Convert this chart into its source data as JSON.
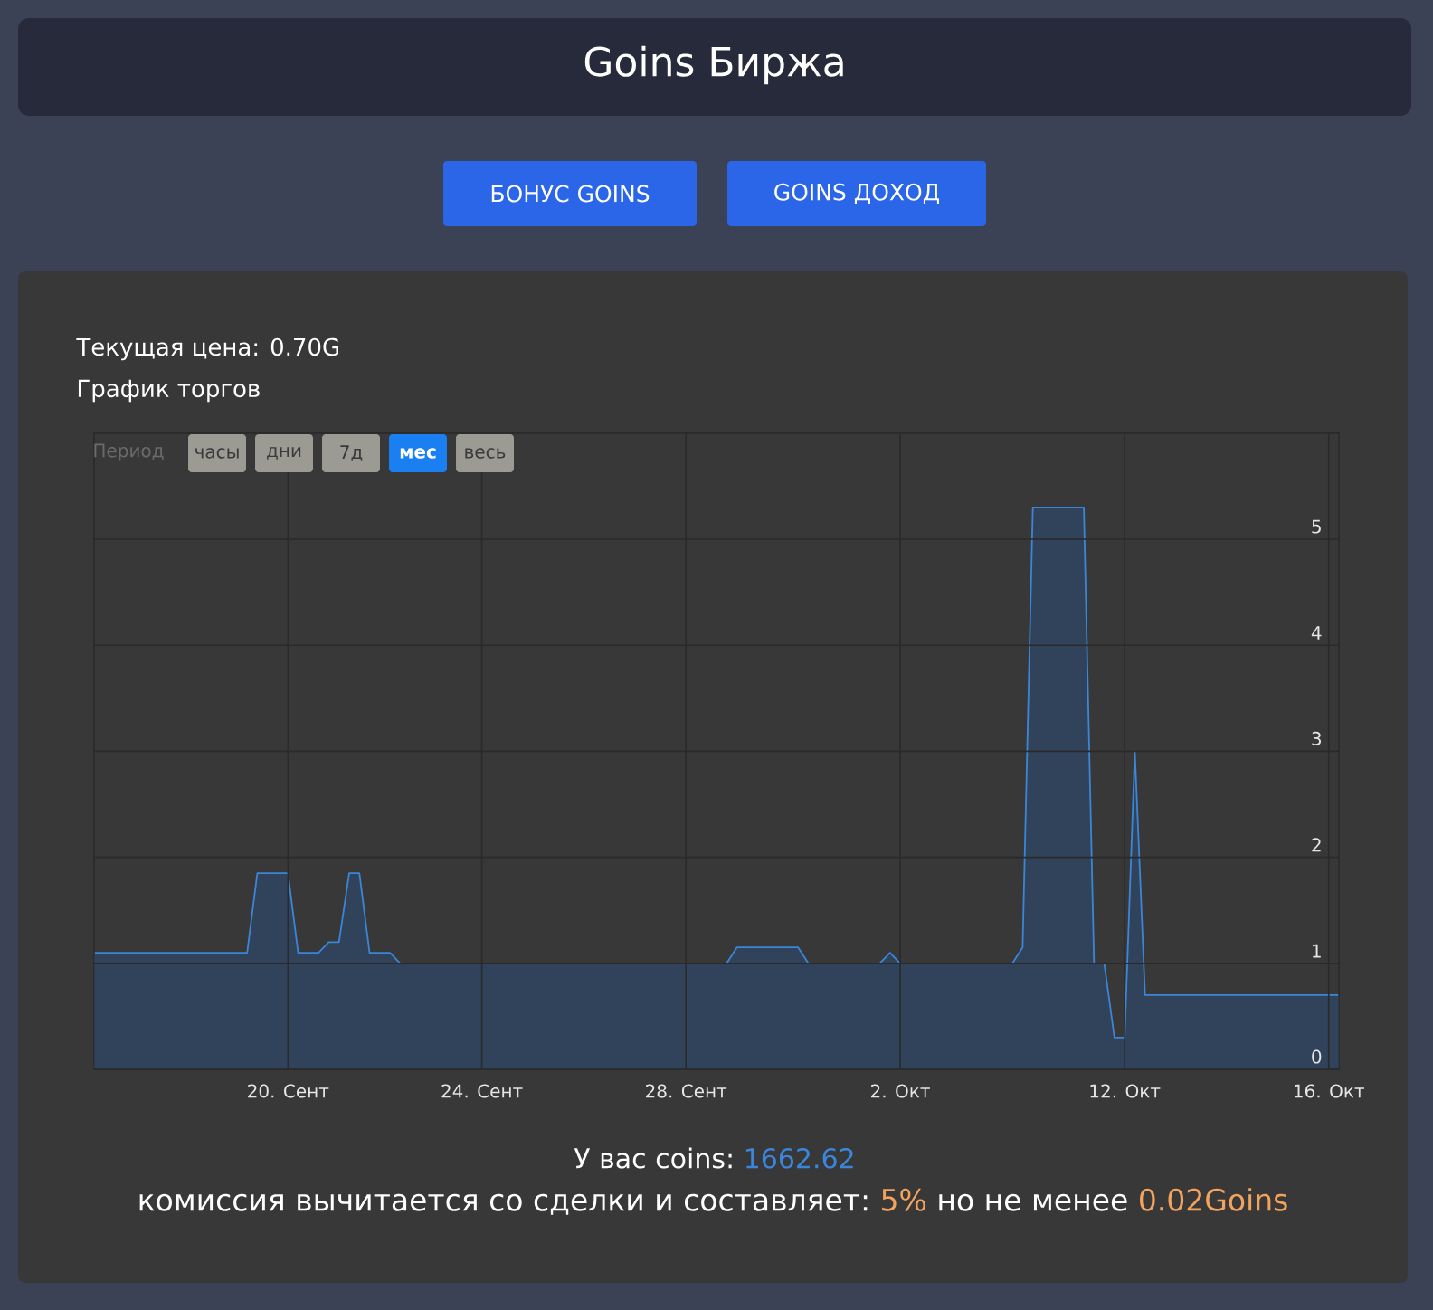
{
  "chart_data": {
    "type": "area",
    "title": "Goins Биржа",
    "subtitle": "График торгов",
    "annotations": [
      "БОНУС GOINS",
      "GOINS ДОХОД",
      "Текущая цена: 0.70G",
      "Период",
      "часы",
      "дни",
      "7д",
      "мес",
      "весь",
      "У вас coins:",
      "1662.62",
      "комиссия вычитается со сделки и составляет:",
      "5%",
      "но не менее",
      "0.02Goins"
    ],
    "categories": [
      null,
      null,
      null,
      null,
      null,
      null,
      null,
      null,
      null,
      null,
      null,
      null,
      null,
      null,
      null,
      null,
      null,
      null,
      null,
      "20. Сент",
      null,
      null,
      null,
      null,
      null,
      null,
      null,
      null,
      null,
      null,
      null,
      null,
      null,
      null,
      null,
      null,
      null,
      null,
      "24. Сент",
      null,
      null,
      null,
      null,
      null,
      null,
      null,
      null,
      null,
      null,
      null,
      null,
      null,
      null,
      null,
      null,
      null,
      null,
      null,
      "28. Сент",
      null,
      null,
      null,
      null,
      null,
      null,
      null,
      null,
      null,
      null,
      null,
      null,
      null,
      null,
      null,
      null,
      null,
      null,
      null,
      null,
      "2. Окт",
      null,
      null,
      null,
      null,
      null,
      null,
      null,
      null,
      null,
      null,
      null,
      null,
      null,
      null,
      null,
      null,
      null,
      null,
      null,
      null,
      null,
      "12. Окт",
      null,
      null,
      null,
      null,
      null,
      null,
      null,
      null,
      null,
      null,
      null,
      null,
      null,
      null,
      null,
      null,
      null,
      null,
      null,
      "16. Окт",
      null
    ],
    "values": [
      1.1,
      1.1,
      1.1,
      1.1,
      1.1,
      1.1,
      1.1,
      1.1,
      1.1,
      1.1,
      1.1,
      1.1,
      1.1,
      1.1,
      1.1,
      1.1,
      1.85,
      1.85,
      1.85,
      1.85,
      1.1,
      1.1,
      1.1,
      1.2,
      1.2,
      1.85,
      1.85,
      1.1,
      1.1,
      1.1,
      1,
      1,
      1,
      1,
      1,
      1,
      1,
      1,
      1,
      1,
      1,
      1,
      1,
      1,
      1,
      1,
      1,
      1,
      1,
      1,
      1,
      1,
      1,
      1,
      1,
      1,
      1,
      1,
      1,
      1,
      1,
      1,
      1,
      1.15,
      1.15,
      1.15,
      1.15,
      1.15,
      1.15,
      1.15,
      1,
      1,
      1,
      1,
      1,
      1,
      1,
      1,
      1.1,
      1,
      1,
      1,
      1,
      1,
      1,
      1,
      1,
      1,
      1,
      1,
      1,
      1.15,
      5.3,
      5.3,
      5.3,
      5.3,
      5.3,
      5.3,
      1,
      1,
      0.3,
      0.3,
      3.0,
      0.7,
      0.7,
      0.7,
      0.7,
      0.7,
      0.7,
      0.7,
      0.7,
      0.7,
      0.7,
      0.7,
      0.7,
      0.7,
      0.7,
      0.7,
      0.7,
      0.7,
      0.7,
      0.7,
      0.7
    ],
    "color": "#30435a",
    "ylim": [
      0,
      6
    ],
    "yticks": [
      0,
      1,
      2,
      3,
      4,
      5,
      {
        "value": 6,
        "label": null
      }
    ],
    "grid": true
  }
}
